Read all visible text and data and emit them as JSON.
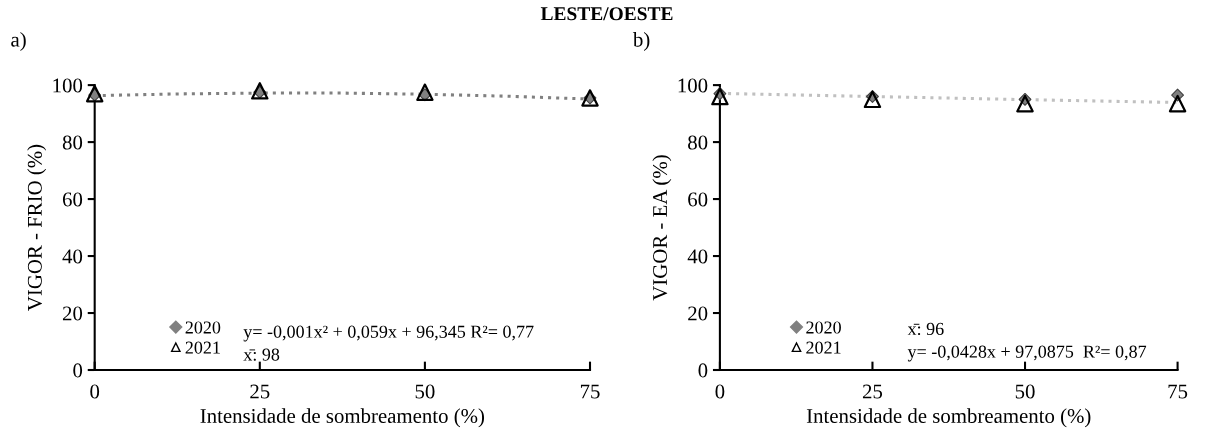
{
  "chart_data": [
    {
      "type": "scatter",
      "title": "LESTE/OESTE",
      "xlabel": "Intensidade de sombreamento (%)",
      "ylabel": "VIGOR - FRIO (%)",
      "x": [
        0,
        25,
        50,
        75
      ],
      "xlim": [
        0,
        75
      ],
      "xticks": [
        0,
        25,
        50,
        75
      ],
      "ylim": [
        0,
        100
      ],
      "yticks": [
        0,
        20,
        40,
        60,
        80,
        100
      ],
      "grid": false,
      "legend": "bottom left",
      "annotations": [
        "a)",
        "y= -0,001x² + 0,059x + 96,345 R²= 0,77",
        "x̄: 98"
      ],
      "series": [
        {
          "name": "2020",
          "marker": "diamond",
          "color": "#808080",
          "values": [
            96.5,
            97.5,
            96.6,
            95.5
          ]
        },
        {
          "name": "2021",
          "marker": "triangle",
          "color": "#000000",
          "values": [
            97,
            98,
            97.5,
            95.5
          ]
        },
        {
          "type": "line",
          "line_style": "dotted",
          "color": "#808080",
          "x": [
            0,
            12.5,
            25,
            37.5,
            50,
            62.5,
            75
          ],
          "values": [
            96.3,
            96.9,
            97.2,
            97.2,
            96.8,
            96.1,
            95.1
          ]
        }
      ]
    },
    {
      "type": "scatter",
      "xlabel": "Intensidade de sombreamento (%)",
      "ylabel": "VIGOR - EA (%)",
      "x": [
        0,
        25,
        50,
        75
      ],
      "xlim": [
        0,
        75
      ],
      "xticks": [
        0,
        25,
        50,
        75
      ],
      "ylim": [
        0,
        100
      ],
      "yticks": [
        0,
        20,
        40,
        60,
        80,
        100
      ],
      "grid": false,
      "legend": "bottom left",
      "annotations": [
        "b)",
        "x̄: 96",
        "y= -0,0428x + 97,0875  R²= 0,87"
      ],
      "series": [
        {
          "name": "2020",
          "marker": "diamond",
          "color": "#808080",
          "values": [
            97,
            96,
            95,
            96.5
          ]
        },
        {
          "name": "2021",
          "marker": "triangle",
          "color": "#000000",
          "values": [
            96,
            95,
            93.5,
            93.5
          ]
        },
        {
          "type": "line",
          "line_style": "dotted",
          "color": "#c0c0c0",
          "x": [
            0,
            25,
            50,
            75
          ],
          "values": [
            97.1,
            96.0,
            94.9,
            93.9
          ]
        }
      ]
    }
  ]
}
